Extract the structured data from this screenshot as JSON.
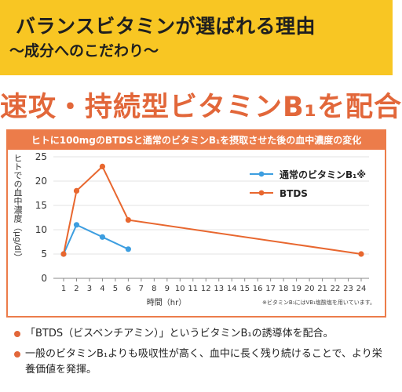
{
  "banner": {
    "title": "バランスビタミンが選ばれる理由",
    "subtitle": "〜成分へのこだわり〜"
  },
  "headline": "速攻・持続型ビタミンB₁を配合",
  "chart_header": "ヒトに100mgのBTDSと通常のビタミンB₁を摂取させた後の血中濃度の変化",
  "footnote": "※ビタミンB₁にはVB₁塩酸塩を用いています。",
  "bullets": [
    "「BTDS（ビスベンチアミン）」というビタミンB₁の誘導体を配合。",
    "一般のビタミンB₁よりも吸収性が高く、血中に長く残り続けることで、より栄養価値を発揮。"
  ],
  "colors": {
    "banner": "#f8c623",
    "accent": "#e2673a",
    "blue_series": "#3d9ee0",
    "orange_series": "#e8672f"
  },
  "chart_data": {
    "type": "line",
    "xlabel": "時間（hr）",
    "ylabel": "ヒトでの血中濃度（μg/dl）",
    "xlim": [
      0,
      24
    ],
    "ylim": [
      0,
      25
    ],
    "xticks": [
      1,
      2,
      3,
      4,
      5,
      6,
      7,
      8,
      9,
      10,
      11,
      12,
      13,
      14,
      15,
      16,
      17,
      18,
      19,
      20,
      21,
      22,
      23,
      24
    ],
    "yticks": [
      0,
      5,
      10,
      15,
      20,
      25
    ],
    "grid": "horizontal",
    "legend_position": "top-right",
    "series": [
      {
        "name": "通常のビタミンB₁※",
        "color": "#3d9ee0",
        "points": [
          [
            1,
            5
          ],
          [
            2,
            11
          ],
          [
            4,
            8.5
          ],
          [
            6,
            6
          ]
        ]
      },
      {
        "name": "BTDS",
        "color": "#e8672f",
        "points": [
          [
            1,
            5
          ],
          [
            2,
            18
          ],
          [
            4,
            23
          ],
          [
            6,
            12
          ],
          [
            24,
            5
          ]
        ]
      }
    ]
  }
}
